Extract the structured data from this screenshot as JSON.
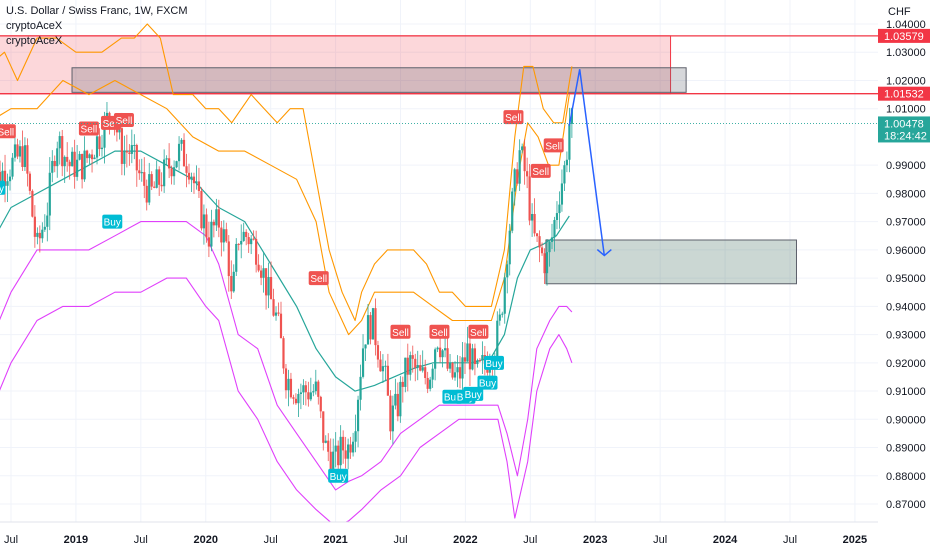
{
  "chart_title": "U.S. Dollar / Swiss Franc, 1W, FXCM",
  "indicators": [
    "cryptoAceX",
    "cryptoAceX"
  ],
  "currency": "CHF",
  "price_labels": {
    "upper_level": "1.03579",
    "lower_level": "1.01532",
    "last_price": "1.00478",
    "countdown": "18:24:42"
  },
  "colors": {
    "up_candle": "#26a69a",
    "down_candle": "#ef5350",
    "sell_label": "#ef5350",
    "buy_label": "#00bcd4",
    "outer_band": "#e040fb",
    "inner_band": "#ff9800",
    "mid_line": "#26a69a",
    "resistance_line": "#f23645",
    "forecast_arrow": "#2962ff"
  },
  "chart_data": {
    "type": "candlestick",
    "title": "U.S. Dollar / Swiss Franc, 1W, FXCM",
    "y_axis": {
      "ticks": [
        "1.04000",
        "1.03000",
        "1.02000",
        "1.01000",
        "0.99000",
        "0.98000",
        "0.97000",
        "0.96000",
        "0.95000",
        "0.94000",
        "0.93000",
        "0.92000",
        "0.91000",
        "0.90000",
        "0.89000",
        "0.88000",
        "0.87000"
      ],
      "range": [
        0.863,
        1.042
      ]
    },
    "x_axis": {
      "ticks": [
        {
          "label": "Jul",
          "time": 2018.5,
          "bold": false
        },
        {
          "label": "2019",
          "time": 2019.0,
          "bold": true
        },
        {
          "label": "Jul",
          "time": 2019.5,
          "bold": false
        },
        {
          "label": "2020",
          "time": 2020.0,
          "bold": true
        },
        {
          "label": "Jul",
          "time": 2020.5,
          "bold": false
        },
        {
          "label": "2021",
          "time": 2021.0,
          "bold": true
        },
        {
          "label": "Jul",
          "time": 2021.5,
          "bold": false
        },
        {
          "label": "2022",
          "time": 2022.0,
          "bold": true
        },
        {
          "label": "Jul",
          "time": 2022.5,
          "bold": false
        },
        {
          "label": "2023",
          "time": 2023.0,
          "bold": true
        },
        {
          "label": "Jul",
          "time": 2023.5,
          "bold": false
        },
        {
          "label": "2024",
          "time": 2024.0,
          "bold": true
        },
        {
          "label": "Jul",
          "time": 2024.5,
          "bold": false
        },
        {
          "label": "2025",
          "time": 2025.0,
          "bold": true
        }
      ],
      "range": [
        2018.3,
        2025.3
      ]
    },
    "price_path": [
      [
        2018.38,
        0.985
      ],
      [
        2018.5,
        0.99
      ],
      [
        2018.6,
        0.995
      ],
      [
        2018.7,
        0.96
      ],
      [
        2018.78,
        0.975
      ],
      [
        2018.85,
        1.0
      ],
      [
        2018.95,
        0.99
      ],
      [
        2019.05,
        0.99
      ],
      [
        2019.12,
        0.995
      ],
      [
        2019.2,
        1.002
      ],
      [
        2019.28,
        1.01
      ],
      [
        2019.35,
        0.995
      ],
      [
        2019.42,
        0.995
      ],
      [
        2019.5,
        0.985
      ],
      [
        2019.58,
        0.98
      ],
      [
        2019.65,
        0.985
      ],
      [
        2019.72,
        0.99
      ],
      [
        2019.8,
        0.995
      ],
      [
        2019.88,
        0.99
      ],
      [
        2019.95,
        0.975
      ],
      [
        2020.02,
        0.965
      ],
      [
        2020.1,
        0.97
      ],
      [
        2020.17,
        0.96
      ],
      [
        2020.2,
        0.94
      ],
      [
        2020.25,
        0.965
      ],
      [
        2020.32,
        0.965
      ],
      [
        2020.4,
        0.96
      ],
      [
        2020.48,
        0.945
      ],
      [
        2020.55,
        0.935
      ],
      [
        2020.62,
        0.915
      ],
      [
        2020.7,
        0.91
      ],
      [
        2020.78,
        0.91
      ],
      [
        2020.85,
        0.91
      ],
      [
        2020.92,
        0.89
      ],
      [
        2021.0,
        0.885
      ],
      [
        2021.05,
        0.89
      ],
      [
        2021.1,
        0.89
      ],
      [
        2021.15,
        0.9
      ],
      [
        2021.22,
        0.93
      ],
      [
        2021.28,
        0.935
      ],
      [
        2021.33,
        0.925
      ],
      [
        2021.38,
        0.915
      ],
      [
        2021.42,
        0.9
      ],
      [
        2021.48,
        0.905
      ],
      [
        2021.52,
        0.915
      ],
      [
        2021.58,
        0.92
      ],
      [
        2021.65,
        0.915
      ],
      [
        2021.72,
        0.915
      ],
      [
        2021.78,
        0.93
      ],
      [
        2021.82,
        0.925
      ],
      [
        2021.88,
        0.915
      ],
      [
        2021.95,
        0.915
      ],
      [
        2022.02,
        0.925
      ],
      [
        2022.08,
        0.915
      ],
      [
        2022.15,
        0.92
      ],
      [
        2022.22,
        0.925
      ],
      [
        2022.27,
        0.935
      ],
      [
        2022.32,
        0.96
      ],
      [
        2022.37,
        0.98
      ],
      [
        2022.42,
        0.995
      ],
      [
        2022.47,
        0.985
      ],
      [
        2022.52,
        0.965
      ],
      [
        2022.57,
        0.96
      ],
      [
        2022.62,
        0.955
      ],
      [
        2022.67,
        0.965
      ],
      [
        2022.72,
        0.98
      ],
      [
        2022.77,
        0.99
      ],
      [
        2022.8,
        1.005
      ]
    ],
    "candle_range": [
      2018.32,
      2022.82
    ],
    "candle_count": 236,
    "upper_outer_band": [
      [
        2018.32,
        1.025
      ],
      [
        2018.45,
        1.03
      ],
      [
        2018.55,
        1.02
      ],
      [
        2018.7,
        1.035
      ],
      [
        2018.85,
        1.035
      ],
      [
        2019.0,
        1.03
      ],
      [
        2019.2,
        1.03
      ],
      [
        2019.35,
        1.035
      ],
      [
        2019.45,
        1.035
      ],
      [
        2019.55,
        1.04
      ],
      [
        2019.65,
        1.035
      ],
      [
        2019.75,
        1.015
      ],
      [
        2019.9,
        1.015
      ],
      [
        2020.0,
        1.01
      ],
      [
        2020.1,
        1.01
      ],
      [
        2020.2,
        1.005
      ],
      [
        2020.35,
        1.015
      ],
      [
        2020.45,
        1.01
      ],
      [
        2020.55,
        1.005
      ],
      [
        2020.65,
        1.01
      ],
      [
        2020.75,
        1.01
      ],
      [
        2020.85,
        0.985
      ],
      [
        2020.95,
        0.96
      ],
      [
        2021.05,
        0.945
      ],
      [
        2021.15,
        0.935
      ],
      [
        2021.2,
        0.945
      ],
      [
        2021.3,
        0.955
      ],
      [
        2021.4,
        0.96
      ],
      [
        2021.5,
        0.96
      ],
      [
        2021.6,
        0.96
      ],
      [
        2021.7,
        0.955
      ],
      [
        2021.8,
        0.945
      ],
      [
        2021.9,
        0.945
      ],
      [
        2022.0,
        0.94
      ],
      [
        2022.1,
        0.94
      ],
      [
        2022.2,
        0.94
      ],
      [
        2022.3,
        0.96
      ],
      [
        2022.38,
        1.0
      ],
      [
        2022.45,
        1.025
      ],
      [
        2022.52,
        1.025
      ],
      [
        2022.6,
        1.01
      ],
      [
        2022.68,
        1.005
      ],
      [
        2022.75,
        1.005
      ],
      [
        2022.82,
        1.025
      ]
    ],
    "upper_inner_band": [
      [
        2018.32,
        1.005
      ],
      [
        2018.5,
        1.01
      ],
      [
        2018.7,
        1.01
      ],
      [
        2018.9,
        1.02
      ],
      [
        2019.1,
        1.015
      ],
      [
        2019.3,
        1.02
      ],
      [
        2019.5,
        1.015
      ],
      [
        2019.7,
        1.01
      ],
      [
        2019.9,
        1.0
      ],
      [
        2020.1,
        0.995
      ],
      [
        2020.3,
        0.995
      ],
      [
        2020.5,
        0.99
      ],
      [
        2020.7,
        0.985
      ],
      [
        2020.85,
        0.97
      ],
      [
        2020.95,
        0.945
      ],
      [
        2021.1,
        0.93
      ],
      [
        2021.2,
        0.935
      ],
      [
        2021.3,
        0.945
      ],
      [
        2021.45,
        0.945
      ],
      [
        2021.6,
        0.945
      ],
      [
        2021.75,
        0.94
      ],
      [
        2021.9,
        0.935
      ],
      [
        2022.05,
        0.935
      ],
      [
        2022.2,
        0.935
      ],
      [
        2022.3,
        0.95
      ],
      [
        2022.4,
        0.985
      ],
      [
        2022.48,
        1.005
      ],
      [
        2022.56,
        1.0
      ],
      [
        2022.64,
        0.99
      ],
      [
        2022.72,
        0.99
      ],
      [
        2022.8,
        1.015
      ]
    ],
    "mid_line": [
      [
        2018.32,
        0.96
      ],
      [
        2018.5,
        0.975
      ],
      [
        2018.7,
        0.98
      ],
      [
        2018.9,
        0.985
      ],
      [
        2019.1,
        0.99
      ],
      [
        2019.3,
        0.995
      ],
      [
        2019.5,
        0.995
      ],
      [
        2019.7,
        0.99
      ],
      [
        2019.9,
        0.985
      ],
      [
        2020.1,
        0.975
      ],
      [
        2020.3,
        0.97
      ],
      [
        2020.5,
        0.955
      ],
      [
        2020.7,
        0.94
      ],
      [
        2020.85,
        0.925
      ],
      [
        2021.0,
        0.915
      ],
      [
        2021.15,
        0.91
      ],
      [
        2021.3,
        0.912
      ],
      [
        2021.45,
        0.915
      ],
      [
        2021.6,
        0.918
      ],
      [
        2021.75,
        0.92
      ],
      [
        2021.9,
        0.92
      ],
      [
        2022.05,
        0.92
      ],
      [
        2022.2,
        0.922
      ],
      [
        2022.3,
        0.93
      ],
      [
        2022.4,
        0.95
      ],
      [
        2022.5,
        0.96
      ],
      [
        2022.6,
        0.962
      ],
      [
        2022.7,
        0.965
      ],
      [
        2022.8,
        0.972
      ]
    ],
    "lower_inner_band": [
      [
        2018.32,
        0.925
      ],
      [
        2018.5,
        0.945
      ],
      [
        2018.7,
        0.96
      ],
      [
        2018.9,
        0.96
      ],
      [
        2019.1,
        0.96
      ],
      [
        2019.3,
        0.965
      ],
      [
        2019.5,
        0.97
      ],
      [
        2019.7,
        0.97
      ],
      [
        2019.85,
        0.97
      ],
      [
        2020.0,
        0.965
      ],
      [
        2020.1,
        0.955
      ],
      [
        2020.25,
        0.93
      ],
      [
        2020.4,
        0.925
      ],
      [
        2020.55,
        0.905
      ],
      [
        2020.7,
        0.895
      ],
      [
        2020.85,
        0.885
      ],
      [
        2021.0,
        0.875
      ],
      [
        2021.1,
        0.878
      ],
      [
        2021.2,
        0.88
      ],
      [
        2021.35,
        0.885
      ],
      [
        2021.5,
        0.895
      ],
      [
        2021.65,
        0.9
      ],
      [
        2021.8,
        0.905
      ],
      [
        2021.95,
        0.905
      ],
      [
        2022.1,
        0.905
      ],
      [
        2022.25,
        0.905
      ],
      [
        2022.32,
        0.895
      ],
      [
        2022.4,
        0.88
      ],
      [
        2022.48,
        0.9
      ],
      [
        2022.55,
        0.925
      ],
      [
        2022.65,
        0.935
      ],
      [
        2022.72,
        0.94
      ],
      [
        2022.78,
        0.94
      ],
      [
        2022.82,
        0.938
      ]
    ],
    "lower_outer_band": [
      [
        2018.32,
        0.9
      ],
      [
        2018.5,
        0.92
      ],
      [
        2018.7,
        0.935
      ],
      [
        2018.9,
        0.94
      ],
      [
        2019.1,
        0.94
      ],
      [
        2019.3,
        0.945
      ],
      [
        2019.5,
        0.945
      ],
      [
        2019.7,
        0.95
      ],
      [
        2019.85,
        0.95
      ],
      [
        2020.0,
        0.94
      ],
      [
        2020.1,
        0.935
      ],
      [
        2020.25,
        0.91
      ],
      [
        2020.4,
        0.9
      ],
      [
        2020.55,
        0.885
      ],
      [
        2020.7,
        0.875
      ],
      [
        2020.85,
        0.868
      ],
      [
        2021.0,
        0.862
      ],
      [
        2021.1,
        0.864
      ],
      [
        2021.2,
        0.868
      ],
      [
        2021.35,
        0.875
      ],
      [
        2021.5,
        0.88
      ],
      [
        2021.65,
        0.89
      ],
      [
        2021.8,
        0.895
      ],
      [
        2021.95,
        0.9
      ],
      [
        2022.1,
        0.9
      ],
      [
        2022.25,
        0.9
      ],
      [
        2022.32,
        0.885
      ],
      [
        2022.38,
        0.865
      ],
      [
        2022.48,
        0.885
      ],
      [
        2022.55,
        0.91
      ],
      [
        2022.65,
        0.925
      ],
      [
        2022.72,
        0.93
      ],
      [
        2022.78,
        0.925
      ],
      [
        2022.82,
        0.92
      ]
    ],
    "signals": [
      {
        "type": "Sell",
        "time": 2018.46,
        "price": 1.002
      },
      {
        "type": "Sell",
        "time": 2019.1,
        "price": 1.003
      },
      {
        "type": "Sell",
        "time": 2019.27,
        "price": 1.005
      },
      {
        "type": "Sell",
        "time": 2019.37,
        "price": 1.006
      },
      {
        "type": "Sell",
        "time": 2020.87,
        "price": 0.95
      },
      {
        "type": "Sell",
        "time": 2021.5,
        "price": 0.931
      },
      {
        "type": "Sell",
        "time": 2021.8,
        "price": 0.931
      },
      {
        "type": "Sell",
        "time": 2022.1,
        "price": 0.931
      },
      {
        "type": "Sell",
        "time": 2022.37,
        "price": 1.007
      },
      {
        "type": "Sell",
        "time": 2022.58,
        "price": 0.988
      },
      {
        "type": "Sell",
        "time": 2022.68,
        "price": 0.997
      },
      {
        "type": "Buy",
        "time": 2018.38,
        "price": 0.982
      },
      {
        "type": "Buy",
        "time": 2018.33,
        "price": 0.979
      },
      {
        "type": "Buy",
        "time": 2019.28,
        "price": 0.97
      },
      {
        "type": "Buy",
        "time": 2021.02,
        "price": 0.88
      },
      {
        "type": "Buy",
        "time": 2021.9,
        "price": 0.908
      },
      {
        "type": "Buy",
        "time": 2022.0,
        "price": 0.908
      },
      {
        "type": "Buy",
        "time": 2022.06,
        "price": 0.909
      },
      {
        "type": "Buy",
        "time": 2022.17,
        "price": 0.913
      },
      {
        "type": "Buy",
        "time": 2022.22,
        "price": 0.92
      }
    ],
    "zones": [
      {
        "name": "upper-resistance-zone",
        "t1": 2018.3,
        "t2": 2023.58,
        "p1": 1.0358,
        "p2": 1.0153,
        "fill": "rgba(242,54,69,0.20)",
        "stroke": "#f23645"
      },
      {
        "name": "grey-zone",
        "t1": 2018.97,
        "t2": 2023.7,
        "p1": 1.0245,
        "p2": 1.0158,
        "fill": "rgba(93,96,107,0.25)",
        "stroke": "#5d606b"
      },
      {
        "name": "target-zone",
        "t1": 2022.62,
        "t2": 2024.55,
        "p1": 0.9635,
        "p2": 0.948,
        "fill": "rgba(47,94,80,0.25)",
        "stroke": "#5d606b"
      }
    ],
    "levels": [
      1.03579,
      1.01532
    ],
    "forecast_path": [
      [
        2022.8,
        1.004
      ],
      [
        2022.88,
        1.024
      ],
      [
        2023.07,
        0.958
      ]
    ]
  }
}
